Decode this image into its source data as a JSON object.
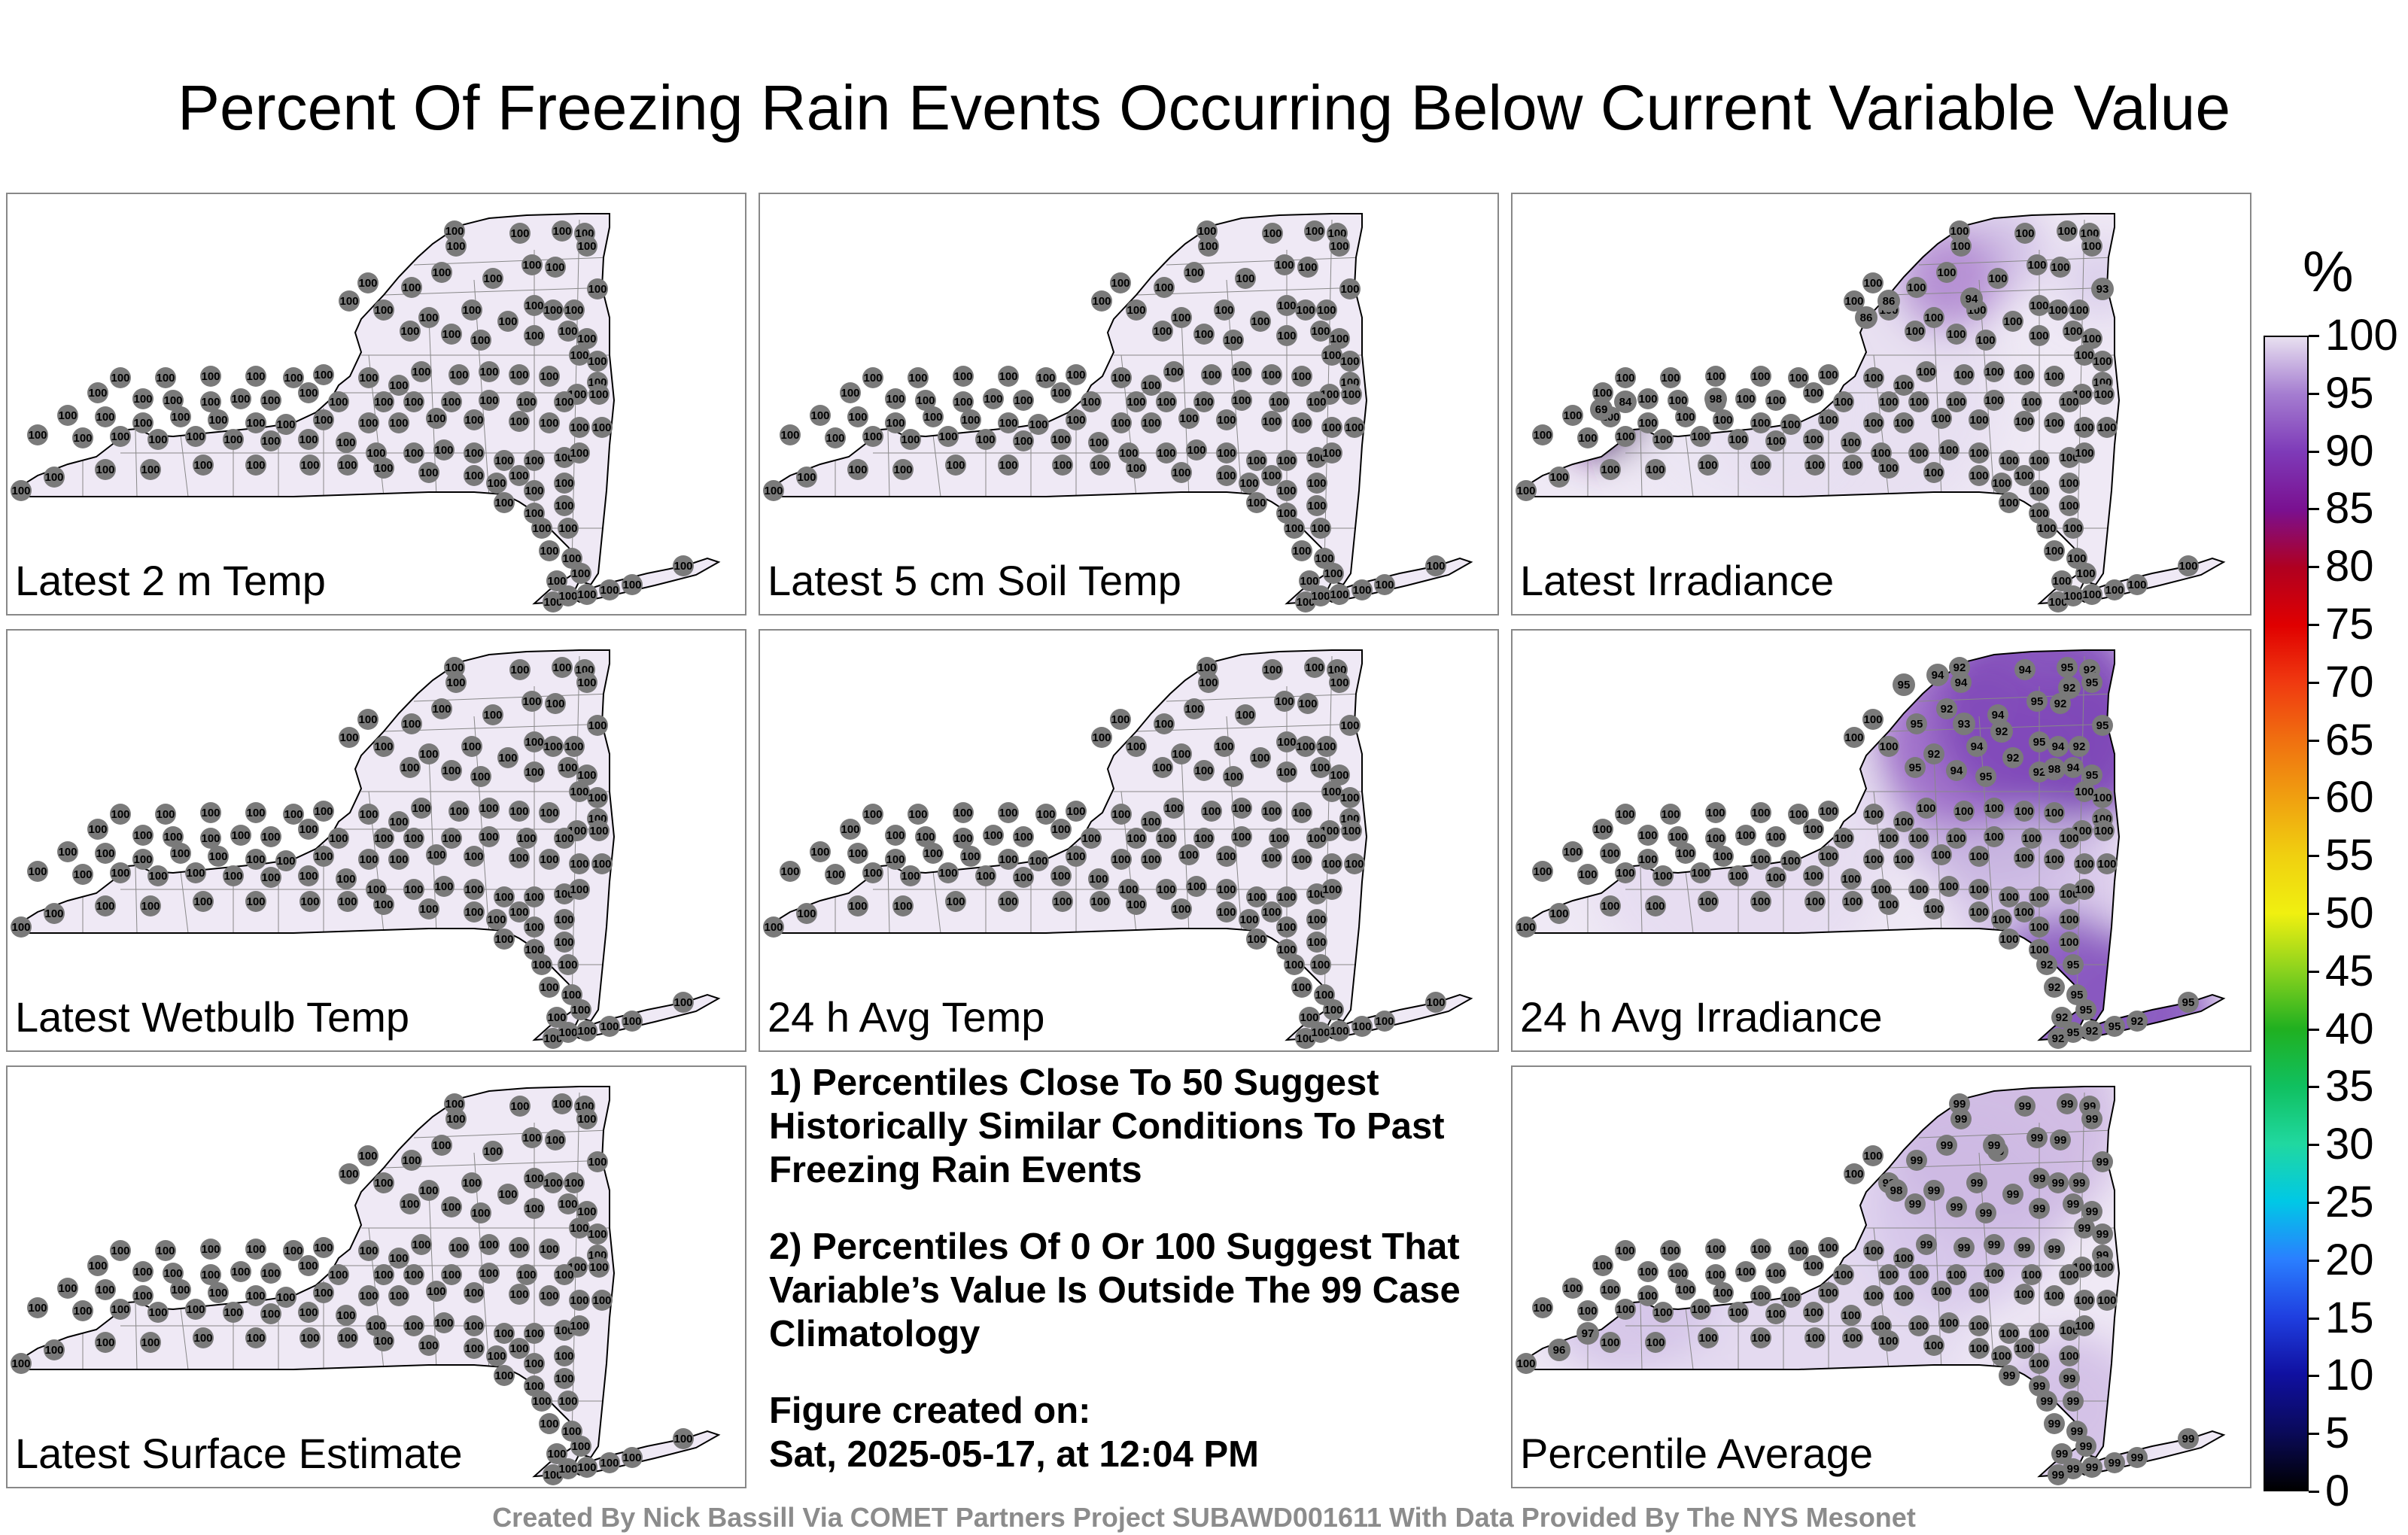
{
  "title": "Percent Of Freezing Rain Events Occurring Below Current Variable Value",
  "panels": [
    {
      "label": "Latest 2 m Temp"
    },
    {
      "label": "Latest 5 cm Soil Temp"
    },
    {
      "label": "Latest Irradiance"
    },
    {
      "label": "Latest Wetbulb Temp"
    },
    {
      "label": "24 h Avg Temp"
    },
    {
      "label": "24 h Avg Irradiance"
    },
    {
      "label": "Latest Surface Estimate"
    },
    {
      "label": "Percentile Average"
    }
  ],
  "notes": {
    "note1": "1) Percentiles Close To 50 Suggest Historically Similar Conditions To Past Freezing Rain Events",
    "note2": "2) Percentiles Of 0 Or 100 Suggest That Variable’s Value Is Outside The 99 Case Climatology",
    "created_label": "Figure created on:",
    "created_date": "Sat, 2025-05-17, at 12:04 PM"
  },
  "colorbar": {
    "unit": "%",
    "ticks": [
      "0",
      "5",
      "10",
      "15",
      "20",
      "25",
      "30",
      "35",
      "40",
      "45",
      "50",
      "55",
      "60",
      "65",
      "70",
      "75",
      "80",
      "85",
      "90",
      "95",
      "100"
    ],
    "colors": [
      "#000000",
      "#0a0a5a",
      "#1010a0",
      "#1f3fe0",
      "#2a7fff",
      "#00c8e6",
      "#20d8a0",
      "#10c060",
      "#20b020",
      "#8ad21e",
      "#f0f010",
      "#f0d010",
      "#f0a010",
      "#f07010",
      "#f03a10",
      "#e00000",
      "#b00020",
      "#7a1090",
      "#7e3ab8",
      "#a47cd0",
      "#e8e0f0"
    ]
  },
  "footer": "Created By Nick Bassill Via COMET Partners Project SUBAWD001611 With Data Provided By The NYS Mesonet"
}
